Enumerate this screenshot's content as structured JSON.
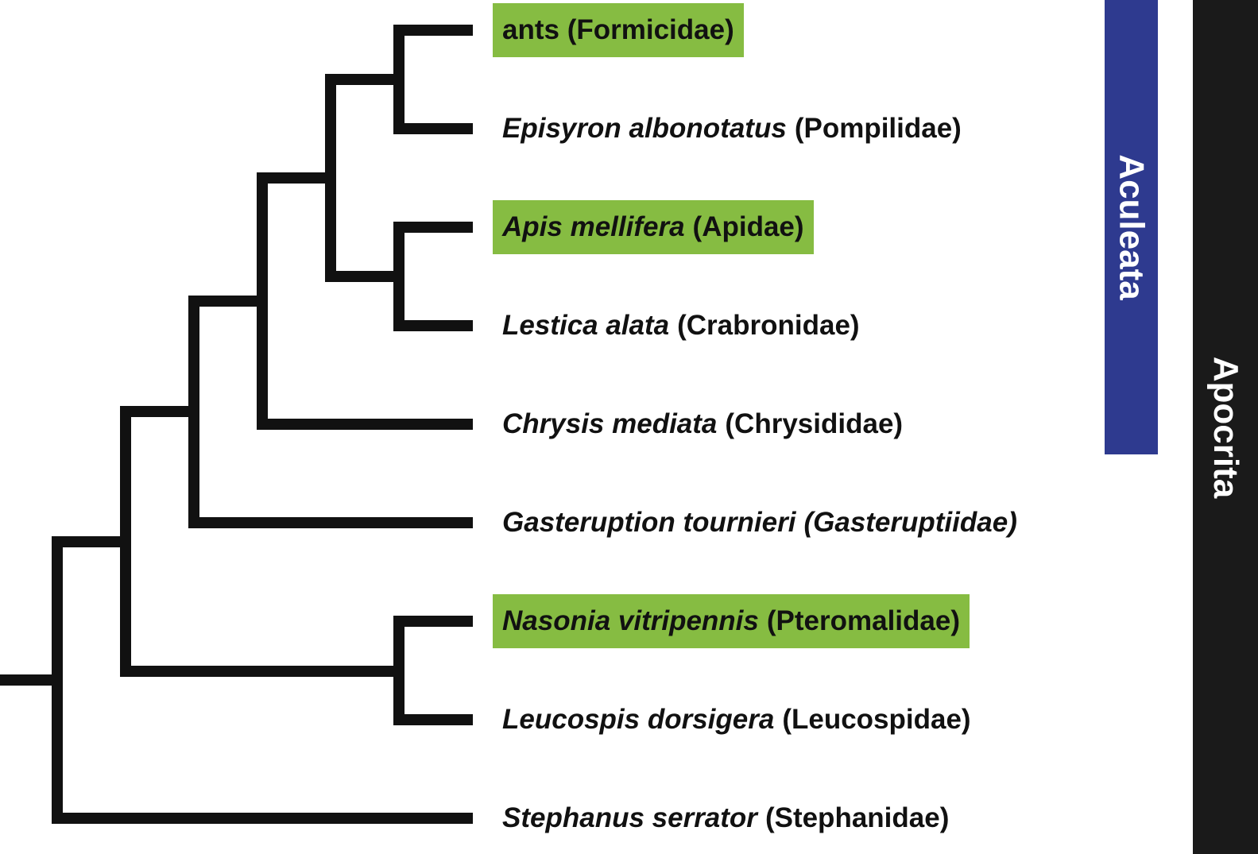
{
  "colors": {
    "branch": "#111111",
    "highlight": "#86bc42",
    "aculeata_bar": "#2e3a8f",
    "apocrita_bar": "#1a1a1a",
    "text": "#111111"
  },
  "taxa": [
    {
      "genus": "",
      "family": "ants (Formicidae)",
      "family_italic": false,
      "highlight": true
    },
    {
      "genus": "Episyron albonotatus",
      "family": "(Pompilidae)",
      "family_italic": false,
      "highlight": false
    },
    {
      "genus": "Apis mellifera",
      "family": "(Apidae)",
      "family_italic": false,
      "highlight": true
    },
    {
      "genus": "Lestica alata",
      "family": "(Crabronidae)",
      "family_italic": false,
      "highlight": false
    },
    {
      "genus": "Chrysis mediata",
      "family": "(Chrysididae)",
      "family_italic": false,
      "highlight": false
    },
    {
      "genus": "Gasteruption tournieri",
      "family": "(Gasteruptiidae)",
      "family_italic": true,
      "highlight": false
    },
    {
      "genus": "Nasonia vitripennis",
      "family": "(Pteromalidae)",
      "family_italic": false,
      "highlight": true
    },
    {
      "genus": "Leucospis dorsigera",
      "family": "(Leucospidae)",
      "family_italic": false,
      "highlight": false
    },
    {
      "genus": "Stephanus serrator",
      "family": "(Stephanidae)",
      "family_italic": false,
      "highlight": false
    }
  ],
  "clades": [
    {
      "label": "Aculeata",
      "from_taxon": 0,
      "to_taxon": 4
    },
    {
      "label": "Apocrita",
      "from_taxon": 0,
      "to_taxon": 8
    }
  ]
}
